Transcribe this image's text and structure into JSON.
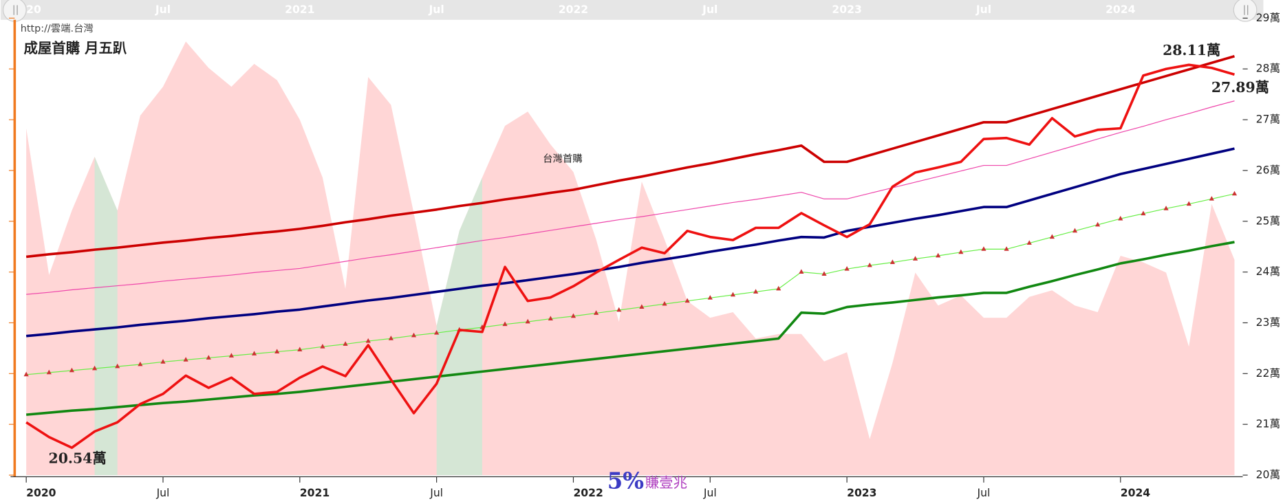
{
  "chart_data": {
    "type": "line",
    "title": "成屋首購 月五趴",
    "source": "http://雲端.台灣",
    "series_label": "台灣首購",
    "annotations": [
      "28.11萬",
      "27.89萬",
      "20.54萬"
    ],
    "watermark": [
      "5%",
      "賺壹兆"
    ],
    "categories": [
      "2020",
      null,
      null,
      null,
      null,
      null,
      "Jul",
      null,
      null,
      null,
      null,
      null,
      "2021",
      null,
      null,
      null,
      null,
      null,
      "Jul",
      null,
      null,
      null,
      null,
      null,
      "2022",
      null,
      null,
      null,
      null,
      null,
      "Jul",
      null,
      null,
      null,
      null,
      null,
      "2023",
      null,
      null,
      null,
      null,
      null,
      "Jul",
      null,
      null,
      null,
      null,
      null,
      "2024",
      null,
      null,
      null,
      null,
      null
    ],
    "ylim": [
      20,
      29
    ],
    "yticks": [
      {
        "value": 20,
        "label": "20萬"
      },
      {
        "value": 21,
        "label": "21萬"
      },
      {
        "value": 22,
        "label": "22萬"
      },
      {
        "value": 23,
        "label": "23萬"
      },
      {
        "value": 24,
        "label": "24萬"
      },
      {
        "value": 25,
        "label": "25萬"
      },
      {
        "value": 26,
        "label": "26萬"
      },
      {
        "value": 27,
        "label": "27萬"
      },
      {
        "value": 28,
        "label": "28萬"
      },
      {
        "value": 29,
        "label": "29萬"
      }
    ],
    "series": [
      {
        "kind": "area",
        "color": "#ffd6d6",
        "values": [
          26.83,
          23.94,
          25.21,
          26.27,
          25.21,
          27.08,
          27.65,
          28.54,
          28.02,
          27.65,
          28.1,
          27.78,
          27.0,
          25.86,
          23.67,
          27.84,
          27.29,
          25.16,
          22.94,
          24.81,
          25.86,
          26.88,
          27.16,
          26.51,
          25.97,
          24.64,
          23.02,
          25.78,
          24.64,
          23.43,
          23.1,
          23.21,
          22.69,
          22.78,
          22.78,
          22.24,
          22.42,
          20.71,
          22.21,
          23.99,
          23.34,
          23.54,
          23.1,
          23.1,
          23.51,
          23.64,
          23.34,
          23.21,
          24.32,
          24.19,
          23.99,
          22.53,
          25.34,
          24.24
        ]
      },
      {
        "kind": "area",
        "color": "#d5e6d5",
        "values": [
          null,
          null,
          null,
          26.27,
          25.21,
          null,
          null,
          null,
          null,
          null,
          null,
          null,
          null,
          null,
          null,
          null,
          null,
          null,
          22.94,
          24.81,
          25.86,
          null,
          null,
          null,
          null,
          null,
          null,
          null,
          null,
          null,
          null,
          null,
          null,
          null,
          null,
          null,
          null,
          null,
          null,
          null,
          null,
          null,
          null,
          null,
          null,
          null,
          null,
          null,
          null,
          null,
          null,
          null,
          null,
          null
        ]
      },
      {
        "kind": "line",
        "color": "#ee44aa",
        "width": 1,
        "values": [
          23.56,
          23.6,
          23.65,
          23.69,
          23.73,
          23.77,
          23.82,
          23.86,
          23.9,
          23.94,
          23.99,
          24.03,
          24.07,
          24.14,
          24.21,
          24.28,
          24.34,
          24.41,
          24.48,
          24.55,
          24.62,
          24.68,
          24.75,
          24.82,
          24.89,
          24.96,
          25.03,
          25.09,
          25.16,
          25.23,
          25.3,
          25.37,
          25.43,
          25.5,
          25.57,
          25.44,
          25.44,
          25.55,
          25.66,
          25.77,
          25.88,
          25.99,
          26.1,
          26.1,
          26.23,
          26.36,
          26.49,
          26.62,
          26.75,
          26.87,
          27.0,
          27.12,
          27.25,
          27.37
        ]
      },
      {
        "kind": "line",
        "color": "#66ee44",
        "width": 1,
        "markers": "#cc3333",
        "values": [
          21.98,
          22.02,
          22.06,
          22.1,
          22.14,
          22.18,
          22.23,
          22.27,
          22.31,
          22.35,
          22.39,
          22.43,
          22.47,
          22.53,
          22.58,
          22.64,
          22.69,
          22.75,
          22.8,
          22.86,
          22.91,
          22.97,
          23.02,
          23.08,
          23.13,
          23.19,
          23.25,
          23.31,
          23.37,
          23.43,
          23.49,
          23.55,
          23.61,
          23.67,
          24.0,
          23.96,
          24.06,
          24.13,
          24.19,
          24.26,
          24.32,
          24.39,
          24.45,
          24.45,
          24.57,
          24.69,
          24.81,
          24.93,
          25.05,
          25.15,
          25.25,
          25.34,
          25.44,
          25.54
        ]
      },
      {
        "kind": "line",
        "color": "#118811",
        "width": 3,
        "values": [
          21.19,
          21.23,
          21.27,
          21.3,
          21.34,
          21.38,
          21.42,
          21.45,
          21.49,
          21.53,
          21.57,
          21.6,
          21.64,
          21.69,
          21.74,
          21.79,
          21.84,
          21.89,
          21.94,
          21.99,
          22.04,
          22.09,
          22.14,
          22.19,
          22.24,
          22.29,
          22.34,
          22.39,
          22.44,
          22.49,
          22.54,
          22.59,
          22.64,
          22.69,
          23.2,
          23.18,
          23.31,
          23.36,
          23.4,
          23.45,
          23.5,
          23.54,
          23.59,
          23.59,
          23.71,
          23.82,
          23.94,
          24.05,
          24.17,
          24.25,
          24.34,
          24.42,
          24.51,
          24.59
        ]
      },
      {
        "kind": "line",
        "color": "#000080",
        "width": 3,
        "values": [
          22.74,
          22.78,
          22.83,
          22.87,
          22.91,
          22.96,
          23.0,
          23.04,
          23.09,
          23.13,
          23.17,
          23.22,
          23.26,
          23.32,
          23.38,
          23.44,
          23.49,
          23.55,
          23.61,
          23.67,
          23.73,
          23.78,
          23.84,
          23.9,
          23.96,
          24.03,
          24.1,
          24.18,
          24.25,
          24.32,
          24.4,
          24.47,
          24.54,
          24.62,
          24.69,
          24.68,
          24.81,
          24.89,
          24.97,
          25.05,
          25.12,
          25.2,
          25.28,
          25.28,
          25.41,
          25.54,
          25.67,
          25.8,
          25.93,
          26.03,
          26.13,
          26.23,
          26.33,
          26.43
        ]
      },
      {
        "kind": "line",
        "color": "#cc0000",
        "width": 3,
        "values": [
          24.3,
          24.35,
          24.39,
          24.44,
          24.48,
          24.53,
          24.58,
          24.62,
          24.67,
          24.71,
          24.76,
          24.8,
          24.85,
          24.91,
          24.98,
          25.04,
          25.11,
          25.17,
          25.23,
          25.3,
          25.36,
          25.43,
          25.49,
          25.56,
          25.62,
          25.71,
          25.8,
          25.88,
          25.97,
          26.06,
          26.14,
          26.23,
          26.32,
          26.4,
          26.49,
          26.17,
          26.17,
          26.3,
          26.43,
          26.56,
          26.69,
          26.82,
          26.95,
          26.95,
          27.08,
          27.21,
          27.34,
          27.47,
          27.6,
          27.73,
          27.86,
          27.99,
          28.12,
          28.25
        ]
      },
      {
        "kind": "line",
        "color": "#ee1111",
        "width": 3,
        "values": [
          21.04,
          20.75,
          20.54,
          20.86,
          21.04,
          21.4,
          21.6,
          21.96,
          21.72,
          21.92,
          21.6,
          21.64,
          21.92,
          22.14,
          21.95,
          22.56,
          21.88,
          21.22,
          21.8,
          22.86,
          22.82,
          24.1,
          23.43,
          23.5,
          23.72,
          23.99,
          24.24,
          24.48,
          24.37,
          24.81,
          24.69,
          24.63,
          24.87,
          24.87,
          25.16,
          24.92,
          24.69,
          24.94,
          25.68,
          25.96,
          26.06,
          26.17,
          26.62,
          26.64,
          26.51,
          27.03,
          26.67,
          26.8,
          26.83,
          27.87,
          28.0,
          28.08,
          28.02,
          27.89
        ]
      }
    ]
  }
}
